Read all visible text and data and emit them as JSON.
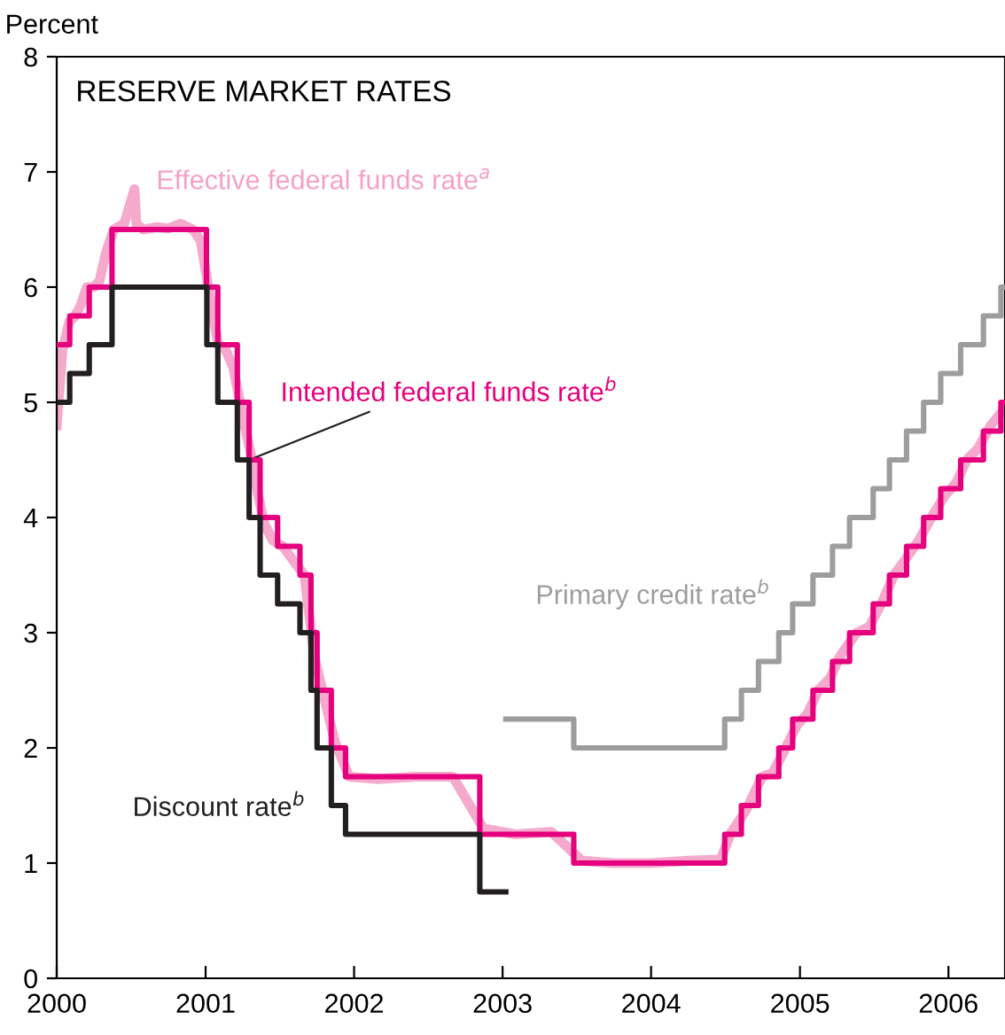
{
  "chart_data": {
    "type": "step",
    "title": "RESERVE MARKET RATES",
    "ylabel": "Percent",
    "xlim": [
      "2000-01-01",
      "2006-05-20"
    ],
    "xticks": [
      {
        "value": "2000-01-01",
        "label": "2000"
      },
      {
        "value": "2001-01-01",
        "label": "2001"
      },
      {
        "value": "2002-01-01",
        "label": "2002"
      },
      {
        "value": "2003-01-01",
        "label": "2003"
      },
      {
        "value": "2004-01-01",
        "label": "2004"
      },
      {
        "value": "2005-01-01",
        "label": "2005"
      },
      {
        "value": "2006-01-01",
        "label": "2006"
      }
    ],
    "ylim": [
      0,
      8
    ],
    "yticks": [
      0,
      1,
      2,
      3,
      4,
      5,
      6,
      7,
      8
    ],
    "grid": false,
    "legend": false,
    "series": [
      {
        "name": "Effective federal funds rate$^{a}$",
        "type": "line",
        "color": "#f4a0c8",
        "x": [
          "2000-01-01",
          "2000-01-15",
          "2000-02-01",
          "2000-02-15",
          "2000-03-01",
          "2000-03-15",
          "2000-04-01",
          "2000-04-15",
          "2000-05-01",
          "2000-05-20",
          "2000-06-15",
          "2000-07-10",
          "2000-07-15",
          "2000-08-01",
          "2000-09-01",
          "2000-10-01",
          "2000-11-01",
          "2000-12-01",
          "2000-12-20",
          "2001-01-10",
          "2001-02-01",
          "2001-02-20",
          "2001-03-10",
          "2001-04-01",
          "2001-04-25",
          "2001-05-10",
          "2001-05-25",
          "2001-06-15",
          "2001-07-10",
          "2001-08-10",
          "2001-09-01",
          "2001-09-25",
          "2001-10-15",
          "2001-11-15",
          "2001-12-20",
          "2002-03-01",
          "2002-06-01",
          "2002-09-01",
          "2002-11-15",
          "2003-02-01",
          "2003-05-01",
          "2003-07-15",
          "2003-10-01",
          "2004-01-01",
          "2004-04-01",
          "2004-06-20",
          "2004-07-15",
          "2004-08-20",
          "2004-09-30",
          "2004-10-25",
          "2004-11-20",
          "2004-12-25",
          "2005-01-20",
          "2005-02-15",
          "2005-03-15",
          "2005-04-10",
          "2005-05-20",
          "2005-06-20",
          "2005-07-20",
          "2005-08-20",
          "2005-09-30",
          "2005-10-20",
          "2005-11-20",
          "2005-12-25",
          "2006-01-20",
          "2006-02-15",
          "2006-03-15",
          "2006-04-15",
          "2006-05-20"
        ],
        "values": [
          4.8,
          5.45,
          5.7,
          5.75,
          5.85,
          6.0,
          6.0,
          6.05,
          6.3,
          6.5,
          6.55,
          6.85,
          6.55,
          6.5,
          6.52,
          6.51,
          6.55,
          6.5,
          6.4,
          5.95,
          5.5,
          5.45,
          5.3,
          4.9,
          4.5,
          4.2,
          3.95,
          3.8,
          3.75,
          3.6,
          3.5,
          2.8,
          2.5,
          2.05,
          1.75,
          1.73,
          1.75,
          1.75,
          1.3,
          1.25,
          1.27,
          1.02,
          1.0,
          1.0,
          1.02,
          1.03,
          1.26,
          1.45,
          1.75,
          1.78,
          1.95,
          2.2,
          2.3,
          2.5,
          2.6,
          2.8,
          3.0,
          3.05,
          3.25,
          3.5,
          3.7,
          3.8,
          4.0,
          4.2,
          4.3,
          4.5,
          4.6,
          4.8,
          4.95
        ]
      },
      {
        "name": "Intended federal funds rate$^{b}$",
        "color": "#e5007d",
        "x": [
          "2000-01-01",
          "2000-02-02",
          "2000-03-21",
          "2000-05-16",
          "2001-01-03",
          "2001-01-31",
          "2001-03-20",
          "2001-04-18",
          "2001-05-15",
          "2001-06-27",
          "2001-08-21",
          "2001-09-17",
          "2001-10-02",
          "2001-11-06",
          "2001-12-11",
          "2002-11-06",
          "2003-06-25",
          "2004-06-30",
          "2004-08-10",
          "2004-09-21",
          "2004-11-10",
          "2004-12-14",
          "2005-02-02",
          "2005-03-22",
          "2005-05-03",
          "2005-06-30",
          "2005-08-09",
          "2005-09-20",
          "2005-11-01",
          "2005-12-13",
          "2006-01-31",
          "2006-03-28",
          "2006-05-10",
          "2006-05-20"
        ],
        "values": [
          5.5,
          5.75,
          6.0,
          6.5,
          6.0,
          5.5,
          5.0,
          4.5,
          4.0,
          3.75,
          3.5,
          3.0,
          2.5,
          2.0,
          1.75,
          1.25,
          1.0,
          1.25,
          1.5,
          1.75,
          2.0,
          2.25,
          2.5,
          2.75,
          3.0,
          3.25,
          3.5,
          3.75,
          4.0,
          4.25,
          4.5,
          4.75,
          5.0,
          5.0
        ]
      },
      {
        "name": "Discount rate$^{b}$",
        "color": "#231f20",
        "x": [
          "2000-01-01",
          "2000-02-02",
          "2000-03-21",
          "2000-05-16",
          "2001-01-04",
          "2001-01-31",
          "2001-03-20",
          "2001-04-18",
          "2001-05-15",
          "2001-06-27",
          "2001-08-21",
          "2001-09-17",
          "2001-10-02",
          "2001-11-06",
          "2001-12-11",
          "2002-11-06",
          "2003-01-09"
        ],
        "values": [
          5.0,
          5.25,
          5.5,
          6.0,
          5.5,
          5.0,
          4.5,
          4.0,
          3.5,
          3.25,
          3.0,
          2.5,
          2.0,
          1.5,
          1.25,
          0.75,
          0.75
        ]
      },
      {
        "name": "Primary credit rate$^{b}$",
        "color": "#9d9d9d",
        "x": [
          "2003-01-09",
          "2003-06-25",
          "2004-06-30",
          "2004-08-10",
          "2004-09-21",
          "2004-11-10",
          "2004-12-14",
          "2005-02-02",
          "2005-03-22",
          "2005-05-03",
          "2005-06-30",
          "2005-08-09",
          "2005-09-20",
          "2005-11-01",
          "2005-12-13",
          "2006-01-31",
          "2006-03-28",
          "2006-05-10",
          "2006-05-20"
        ],
        "values": [
          2.25,
          2.0,
          2.25,
          2.5,
          2.75,
          3.0,
          3.25,
          3.5,
          3.75,
          4.0,
          4.25,
          4.5,
          4.75,
          5.0,
          5.25,
          5.5,
          5.75,
          6.0,
          6.0
        ]
      }
    ]
  }
}
